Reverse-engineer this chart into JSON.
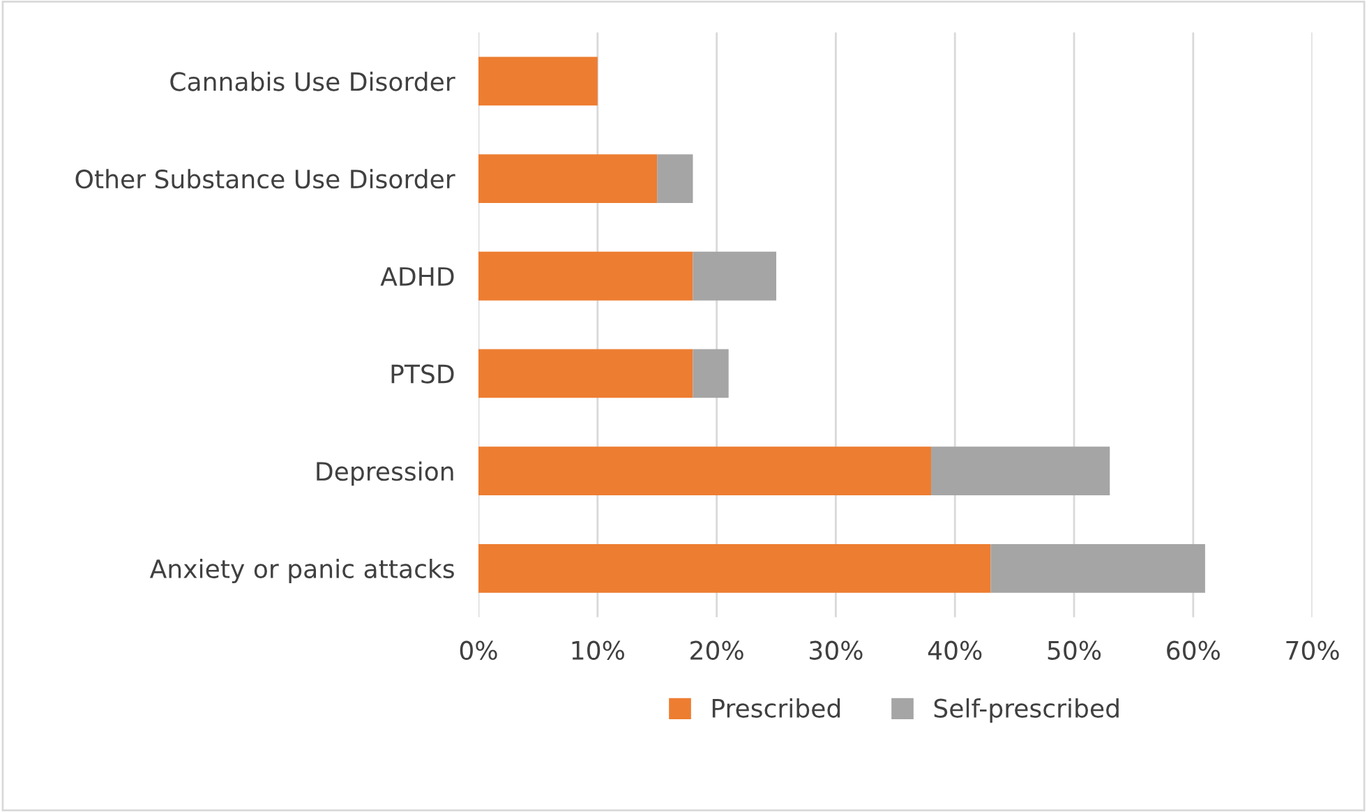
{
  "chart_data": {
    "type": "bar",
    "orientation": "horizontal",
    "stacked": true,
    "categories": [
      "Cannabis Use Disorder",
      "Other Substance Use Disorder",
      "ADHD",
      "PTSD",
      "Depression",
      "Anxiety or panic attacks"
    ],
    "series": [
      {
        "name": "Prescribed",
        "color": "#ed7d31",
        "values": [
          10,
          15,
          18,
          18,
          38,
          43
        ]
      },
      {
        "name": "Self-prescribed",
        "color": "#a5a5a5",
        "values": [
          0,
          3,
          7,
          3,
          15,
          18
        ]
      }
    ],
    "xlim": [
      0,
      70
    ],
    "xticks": [
      {
        "value": 0,
        "label": "0%"
      },
      {
        "value": 10,
        "label": "10%"
      },
      {
        "value": 20,
        "label": "20%"
      },
      {
        "value": 30,
        "label": "30%"
      },
      {
        "value": 40,
        "label": "40%"
      },
      {
        "value": 50,
        "label": "50%"
      },
      {
        "value": 60,
        "label": "60%"
      },
      {
        "value": 70,
        "label": "70%"
      }
    ],
    "grid": "x",
    "legend": "bottom"
  }
}
